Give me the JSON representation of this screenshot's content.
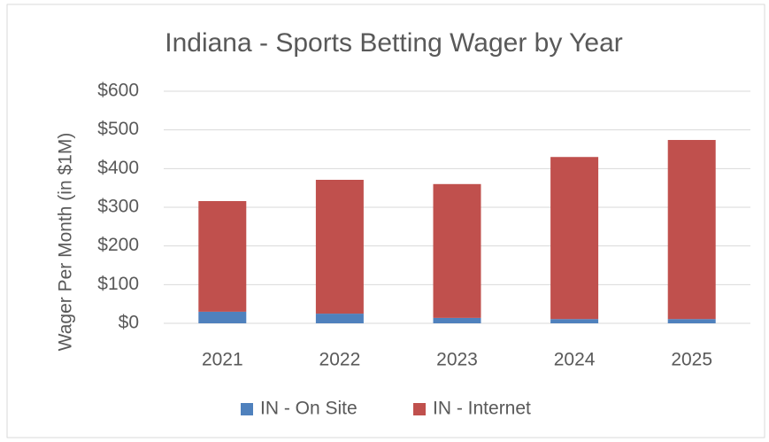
{
  "chart_data": {
    "type": "stacked_bar",
    "title": "Indiana - Sports Betting Wager by Year",
    "y_label": "Wager Per Month (in $1M)",
    "categories": [
      "2021",
      "2022",
      "2023",
      "2024",
      "2025"
    ],
    "series": [
      {
        "name": "IN - On Site",
        "color": "#4f81bd",
        "values": [
          30,
          25,
          14,
          11,
          11
        ]
      },
      {
        "name": "IN - Internet",
        "color": "#c0504d",
        "values": [
          286,
          346,
          346,
          419,
          463
        ]
      }
    ],
    "ylim": [
      0,
      600
    ],
    "yticks": [
      {
        "value": 0,
        "label": "$0"
      },
      {
        "value": 100,
        "label": "$100"
      },
      {
        "value": 200,
        "label": "$200"
      },
      {
        "value": 300,
        "label": "$300"
      },
      {
        "value": 400,
        "label": "$400"
      },
      {
        "value": 500,
        "label": "$500"
      },
      {
        "value": 600,
        "label": "$600"
      }
    ],
    "grid": true,
    "legend": "bottom"
  }
}
